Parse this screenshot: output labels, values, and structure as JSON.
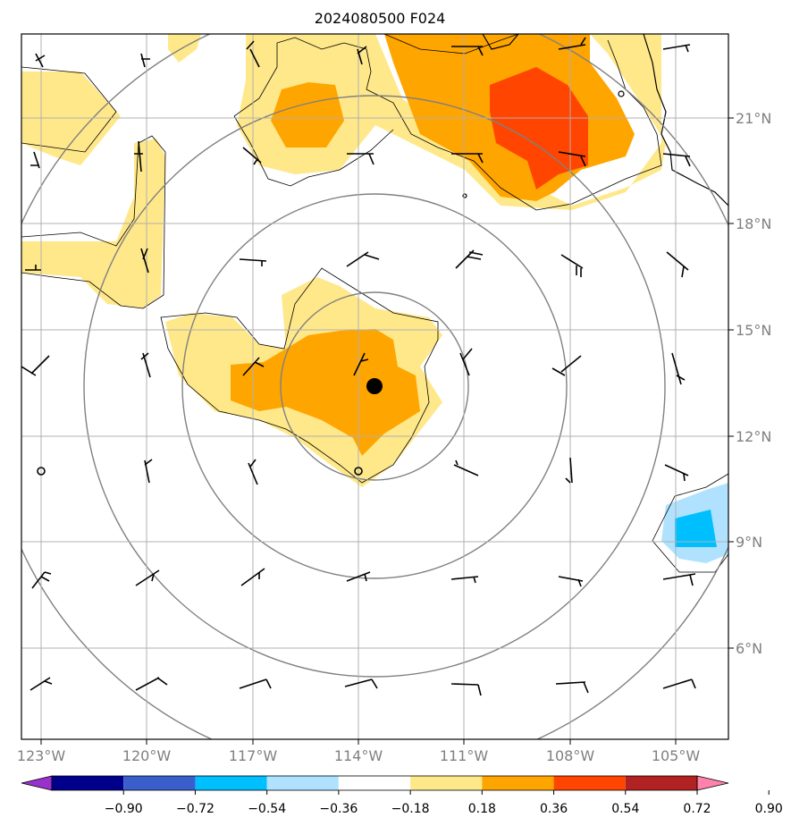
{
  "title": "2024080500 F024",
  "map": {
    "lon_range": [
      -124,
      -104
    ],
    "lat_range": [
      3.5,
      23.5
    ],
    "longitude_ticks": [
      "123°W",
      "120°W",
      "117°W",
      "114°W",
      "111°W",
      "108°W",
      "105°W"
    ],
    "latitude_ticks": [
      "21°N",
      "18°N",
      "15°N",
      "12°N",
      "9°N",
      "6°N"
    ],
    "grid": true,
    "storm_center": {
      "lon": -113.6,
      "lat": 13.4
    },
    "range_rings": "concentric circles around storm center",
    "wind_barbs": true
  },
  "colorbar": {
    "labels": [
      "−0.90",
      "−0.72",
      "−0.54",
      "−0.36",
      "−0.18",
      "0.18",
      "0.36",
      "0.54",
      "0.72",
      "0.90"
    ],
    "colors": [
      "#9932cc",
      "#00008b",
      "#3a5fcd",
      "#00bfff",
      "#b0e2ff",
      "#ffffff",
      "#ffe88a",
      "#ffa500",
      "#ff4500",
      "#b22222",
      "#ff82ab"
    ],
    "orientation": "horizontal",
    "extend": "both"
  },
  "chart_data": {
    "type": "heatmap",
    "field_levels": [
      -0.9,
      -0.72,
      -0.54,
      -0.36,
      -0.18,
      0.18,
      0.36,
      0.54,
      0.72,
      0.9
    ],
    "features": [
      {
        "level": "0.18–0.36",
        "region": "broad band around storm and northeast"
      },
      {
        "level": "0.36–0.54",
        "region": "core near 113.5°W 13.5°N and north near 110°W 21°N"
      },
      {
        "level": "0.54–0.72",
        "region": "near 109°W 20.5°N"
      },
      {
        "level": "−0.36 to −0.18",
        "region": "near 105°W 9.5°N"
      },
      {
        "level": "−0.54 to −0.36",
        "region": "near 105°W 9.5°N core"
      }
    ]
  }
}
